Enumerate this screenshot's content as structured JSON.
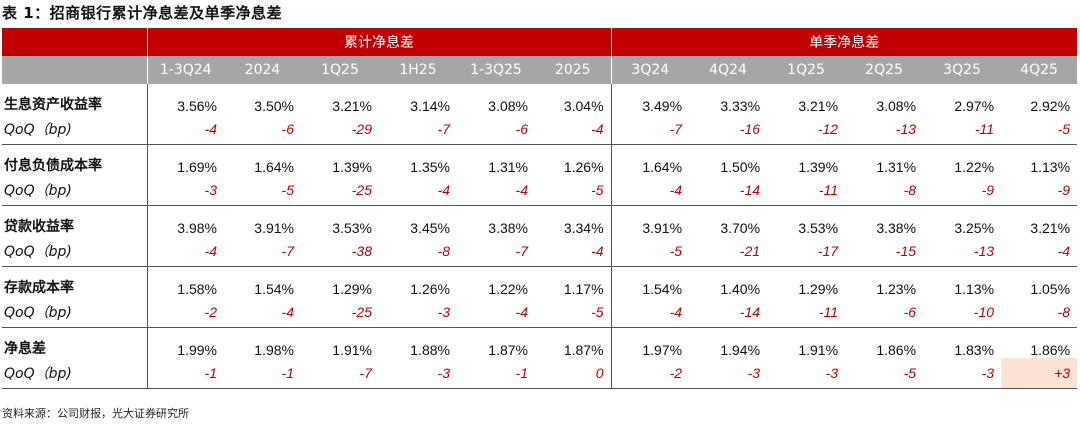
{
  "title": "表 1：招商银行累计净息差及单季净息差",
  "header": {
    "group_cumulative": "累计净息差",
    "group_quarterly": "单季净息差",
    "periods": [
      "1-3Q24",
      "2024",
      "1Q25",
      "1H25",
      "1-3Q25",
      "2025",
      "3Q24",
      "4Q24",
      "1Q25",
      "2Q25",
      "3Q25",
      "4Q25"
    ]
  },
  "rows": [
    {
      "label": "生息资产收益率",
      "qoq_label": "QoQ（bp)",
      "values": [
        "3.56%",
        "3.50%",
        "3.21%",
        "3.14%",
        "3.08%",
        "3.04%",
        "3.49%",
        "3.33%",
        "3.21%",
        "3.08%",
        "2.97%",
        "2.92%"
      ],
      "qoq": [
        "-4",
        "-6",
        "-29",
        "-7",
        "-6",
        "-4",
        "-7",
        "-16",
        "-12",
        "-13",
        "-11",
        "-5"
      ]
    },
    {
      "label": "付息负债成本率",
      "qoq_label": "QoQ（bp)",
      "values": [
        "1.69%",
        "1.64%",
        "1.39%",
        "1.35%",
        "1.31%",
        "1.26%",
        "1.64%",
        "1.50%",
        "1.39%",
        "1.31%",
        "1.22%",
        "1.13%"
      ],
      "qoq": [
        "-3",
        "-5",
        "-25",
        "-4",
        "-4",
        "-5",
        "-4",
        "-14",
        "-11",
        "-8",
        "-9",
        "-9"
      ]
    },
    {
      "label": "贷款收益率",
      "qoq_label": "QoQ（bp)",
      "values": [
        "3.98%",
        "3.91%",
        "3.53%",
        "3.45%",
        "3.38%",
        "3.34%",
        "3.91%",
        "3.70%",
        "3.53%",
        "3.38%",
        "3.25%",
        "3.21%"
      ],
      "qoq": [
        "-4",
        "-7",
        "-38",
        "-8",
        "-7",
        "-4",
        "-5",
        "-21",
        "-17",
        "-15",
        "-13",
        "-4"
      ]
    },
    {
      "label": "存款成本率",
      "qoq_label": "QoQ（bp)",
      "values": [
        "1.58%",
        "1.54%",
        "1.29%",
        "1.26%",
        "1.22%",
        "1.17%",
        "1.54%",
        "1.40%",
        "1.29%",
        "1.23%",
        "1.13%",
        "1.05%"
      ],
      "qoq": [
        "-2",
        "-4",
        "-25",
        "-3",
        "-4",
        "-5",
        "-4",
        "-14",
        "-11",
        "-6",
        "-10",
        "-8"
      ]
    },
    {
      "label": "净息差",
      "qoq_label": "QoQ（bp)",
      "values": [
        "1.99%",
        "1.98%",
        "1.91%",
        "1.88%",
        "1.87%",
        "1.87%",
        "1.97%",
        "1.94%",
        "1.91%",
        "1.86%",
        "1.83%",
        "1.86%"
      ],
      "qoq": [
        "-1",
        "-1",
        "-7",
        "-3",
        "-1",
        "0",
        "-2",
        "-3",
        "-3",
        "-5",
        "-3",
        "+3"
      ]
    }
  ],
  "source": "资料来源：公司财报，光大证券研究所",
  "colors": {
    "header_red": "#c00000",
    "header_gray": "#a6a6a6",
    "negative_text": "#c00000",
    "highlight": "#fbe3d6"
  }
}
